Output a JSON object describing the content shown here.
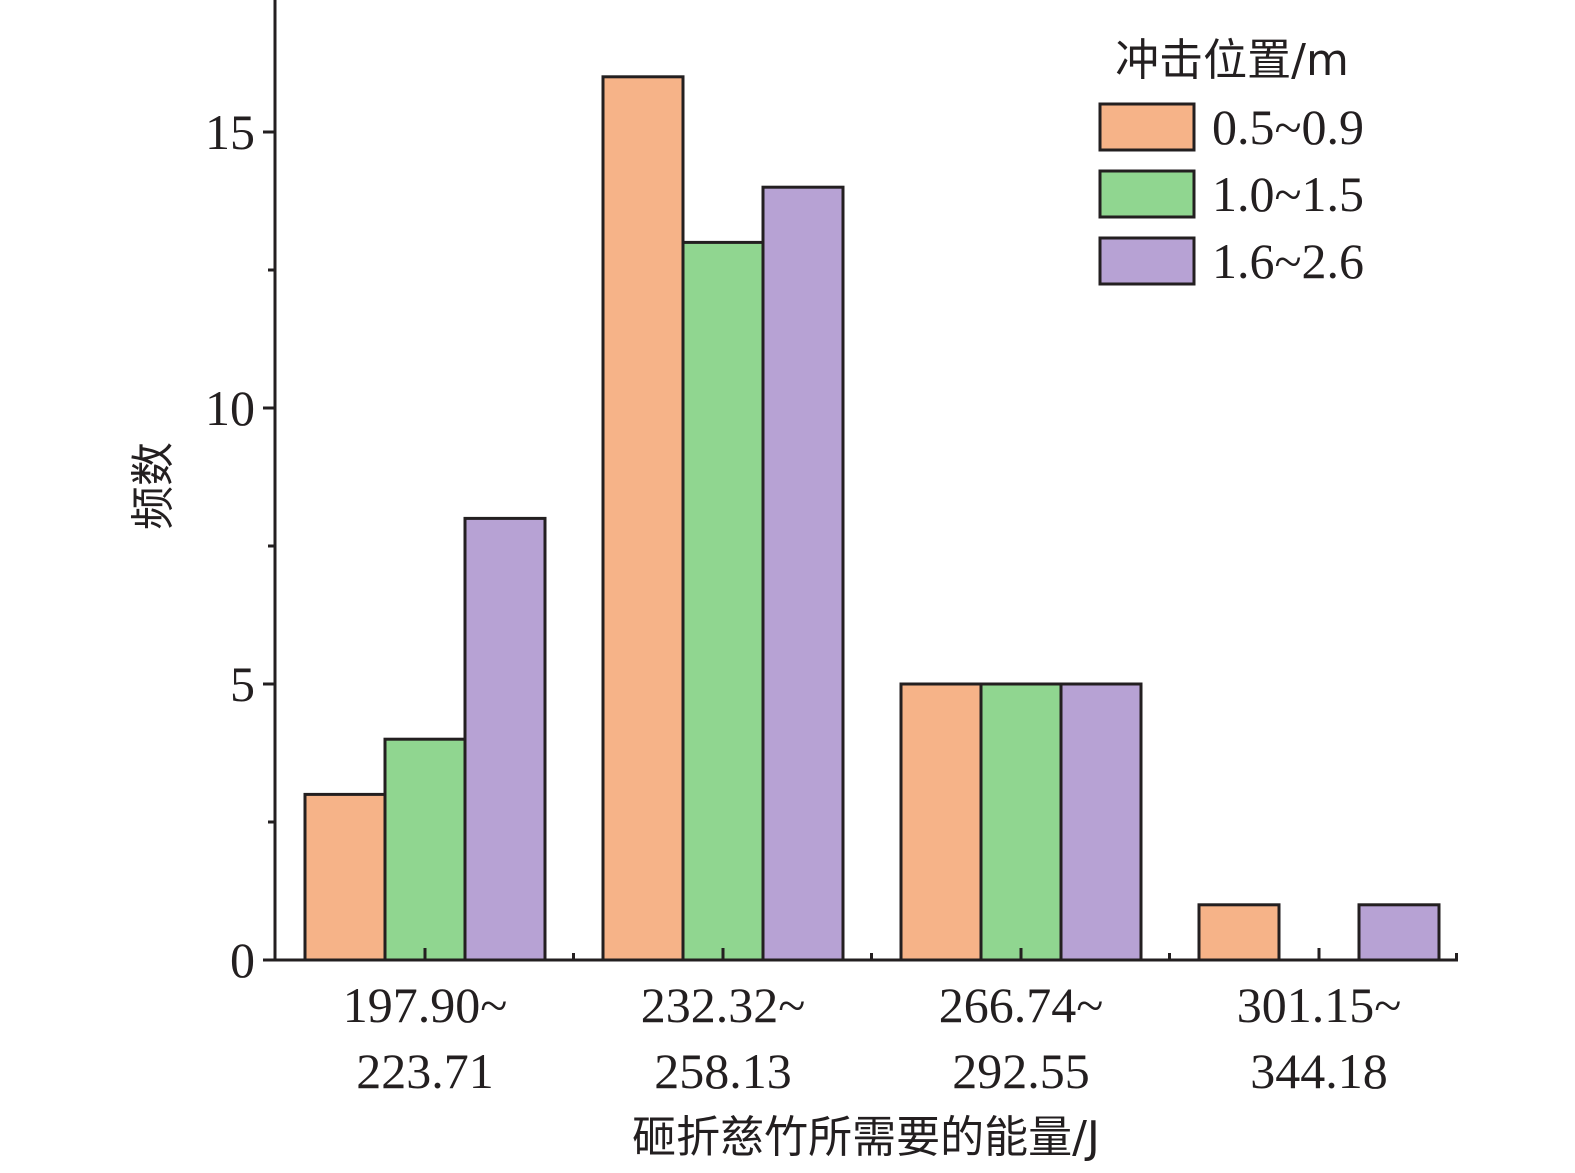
{
  "chart_data": {
    "type": "bar",
    "categories": [
      [
        "197.90~",
        "223.71"
      ],
      [
        "232.32~",
        "258.13"
      ],
      [
        "266.74~",
        "292.55"
      ],
      [
        "301.15~",
        "344.18"
      ]
    ],
    "series": [
      {
        "name": "0.5~0.9",
        "color": "#f6b388",
        "values": [
          3,
          16,
          5,
          1
        ]
      },
      {
        "name": "1.0~1.5",
        "color": "#90d690",
        "values": [
          4,
          13,
          5,
          0
        ]
      },
      {
        "name": "1.6~2.6",
        "color": "#b7a2d4",
        "values": [
          8,
          14,
          5,
          1
        ]
      }
    ],
    "xlabel": "砸折慈竹所需要的能量/J",
    "ylabel": "频数",
    "ylim": [
      0,
      17.5
    ],
    "yticks": [
      0,
      5,
      10,
      15
    ],
    "yminor_ticks": [
      2.5,
      7.5,
      12.5
    ],
    "legend": {
      "title": "冲击位置/m",
      "position": "top-right"
    },
    "grid": false
  }
}
